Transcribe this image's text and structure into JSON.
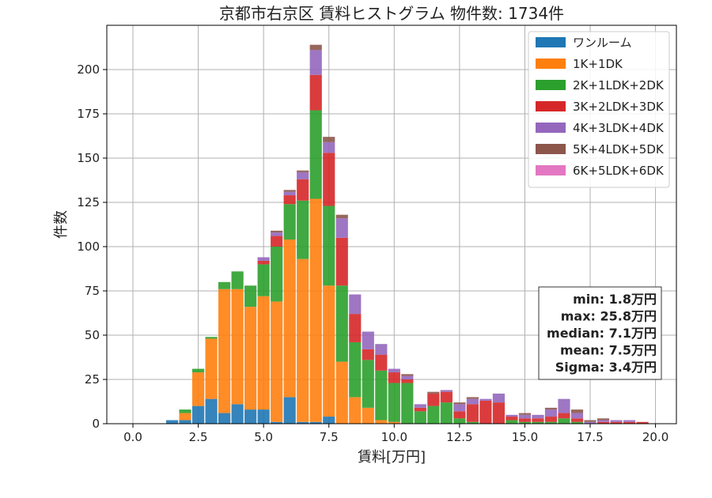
{
  "chart_data": {
    "type": "bar",
    "stacked": true,
    "title": "京都市右京区 賃料ヒストグラム 物件数: 1734件",
    "xlabel": "賃料[万円]",
    "ylabel": "件数",
    "xlim": [
      -1.0,
      20.8
    ],
    "ylim": [
      0,
      225
    ],
    "xticks": [
      0.0,
      2.5,
      5.0,
      7.5,
      10.0,
      12.5,
      15.0,
      17.5,
      20.0
    ],
    "xtick_labels": [
      "0.0",
      "2.5",
      "5.0",
      "7.5",
      "10.0",
      "12.5",
      "15.0",
      "17.5",
      "20.0"
    ],
    "yticks": [
      0,
      25,
      50,
      75,
      100,
      125,
      150,
      175,
      200
    ],
    "ytick_labels": [
      "0",
      "25",
      "50",
      "75",
      "100",
      "125",
      "150",
      "175",
      "200"
    ],
    "grid": true,
    "legend_position": "top-right",
    "bin_width": 0.5,
    "bin_centers": [
      1.5,
      2.0,
      2.5,
      3.0,
      3.5,
      4.0,
      4.5,
      5.0,
      5.5,
      6.0,
      6.5,
      7.0,
      7.5,
      8.0,
      8.5,
      9.0,
      9.5,
      10.0,
      10.5,
      11.0,
      11.5,
      12.0,
      12.5,
      13.0,
      13.5,
      14.0,
      14.5,
      15.0,
      15.5,
      16.0,
      16.5,
      17.0,
      17.5,
      18.0,
      18.5,
      19.0,
      19.5
    ],
    "series": [
      {
        "name": "ワンルーム",
        "color": "#1f77b4",
        "values": [
          2,
          2,
          10,
          14,
          6,
          11,
          8,
          8,
          1,
          15,
          1,
          1,
          4,
          0,
          0,
          0,
          0,
          0,
          0,
          0,
          0,
          0,
          0,
          0,
          0,
          0,
          0,
          0,
          0,
          0,
          0,
          0,
          0,
          0,
          0,
          0,
          0
        ]
      },
      {
        "name": "1K+1DK",
        "color": "#ff7f0e",
        "values": [
          0,
          4,
          19,
          34,
          70,
          65,
          58,
          64,
          68,
          89,
          92,
          126,
          74,
          35,
          15,
          9,
          2,
          1,
          0,
          0,
          0,
          0,
          0,
          0,
          0,
          0,
          0,
          0,
          0,
          0,
          0,
          0,
          0,
          0,
          0,
          0,
          0
        ]
      },
      {
        "name": "2K+1LDK+2DK",
        "color": "#2ca02c",
        "values": [
          0,
          2,
          2,
          1,
          4,
          10,
          12,
          18,
          31,
          20,
          33,
          50,
          45,
          43,
          31,
          27,
          28,
          22,
          23,
          7,
          10,
          12,
          3,
          1,
          0,
          0,
          2,
          1,
          1,
          1,
          3,
          1,
          0,
          0,
          0,
          0,
          0
        ]
      },
      {
        "name": "3K+2LDK+3DK",
        "color": "#d62728",
        "values": [
          0,
          0,
          0,
          0,
          0,
          0,
          0,
          2,
          6,
          5,
          12,
          20,
          30,
          27,
          16,
          6,
          9,
          6,
          2,
          2,
          7,
          6,
          4,
          10,
          13,
          12,
          2,
          2,
          2,
          3,
          3,
          2,
          0,
          1,
          1,
          1,
          1
        ]
      },
      {
        "name": "4K+3LDK+4DK",
        "color": "#9467bd",
        "values": [
          0,
          0,
          0,
          0,
          0,
          0,
          0,
          2,
          2,
          2,
          4,
          14,
          6,
          11,
          11,
          10,
          6,
          2,
          2,
          2,
          0,
          1,
          4,
          3,
          1,
          5,
          1,
          2,
          2,
          4,
          8,
          3,
          1,
          1,
          1,
          1,
          0
        ]
      },
      {
        "name": "5K+4LDK+5DK",
        "color": "#8c564b",
        "values": [
          0,
          0,
          0,
          0,
          0,
          0,
          0,
          0,
          1,
          1,
          1,
          3,
          3,
          2,
          0,
          0,
          0,
          0,
          1,
          0,
          1,
          0,
          1,
          1,
          0,
          0,
          0,
          1,
          0,
          1,
          0,
          2,
          1,
          1,
          0,
          0,
          0
        ]
      },
      {
        "name": "6K+5LDK+6DK",
        "color": "#e377c2",
        "values": [
          0,
          0,
          0,
          0,
          0,
          0,
          0,
          0,
          0,
          0,
          0,
          0,
          0,
          0,
          0,
          0,
          0,
          0,
          0,
          0,
          0,
          0,
          0,
          0,
          0,
          0,
          0,
          0,
          0,
          0,
          0,
          0,
          0,
          0,
          0,
          0,
          0
        ]
      }
    ],
    "stats_box": {
      "lines": [
        "min: 1.8万円",
        "max: 25.8万円",
        "median: 7.1万円",
        "mean: 7.5万円",
        "Sigma: 3.4万円"
      ]
    }
  }
}
